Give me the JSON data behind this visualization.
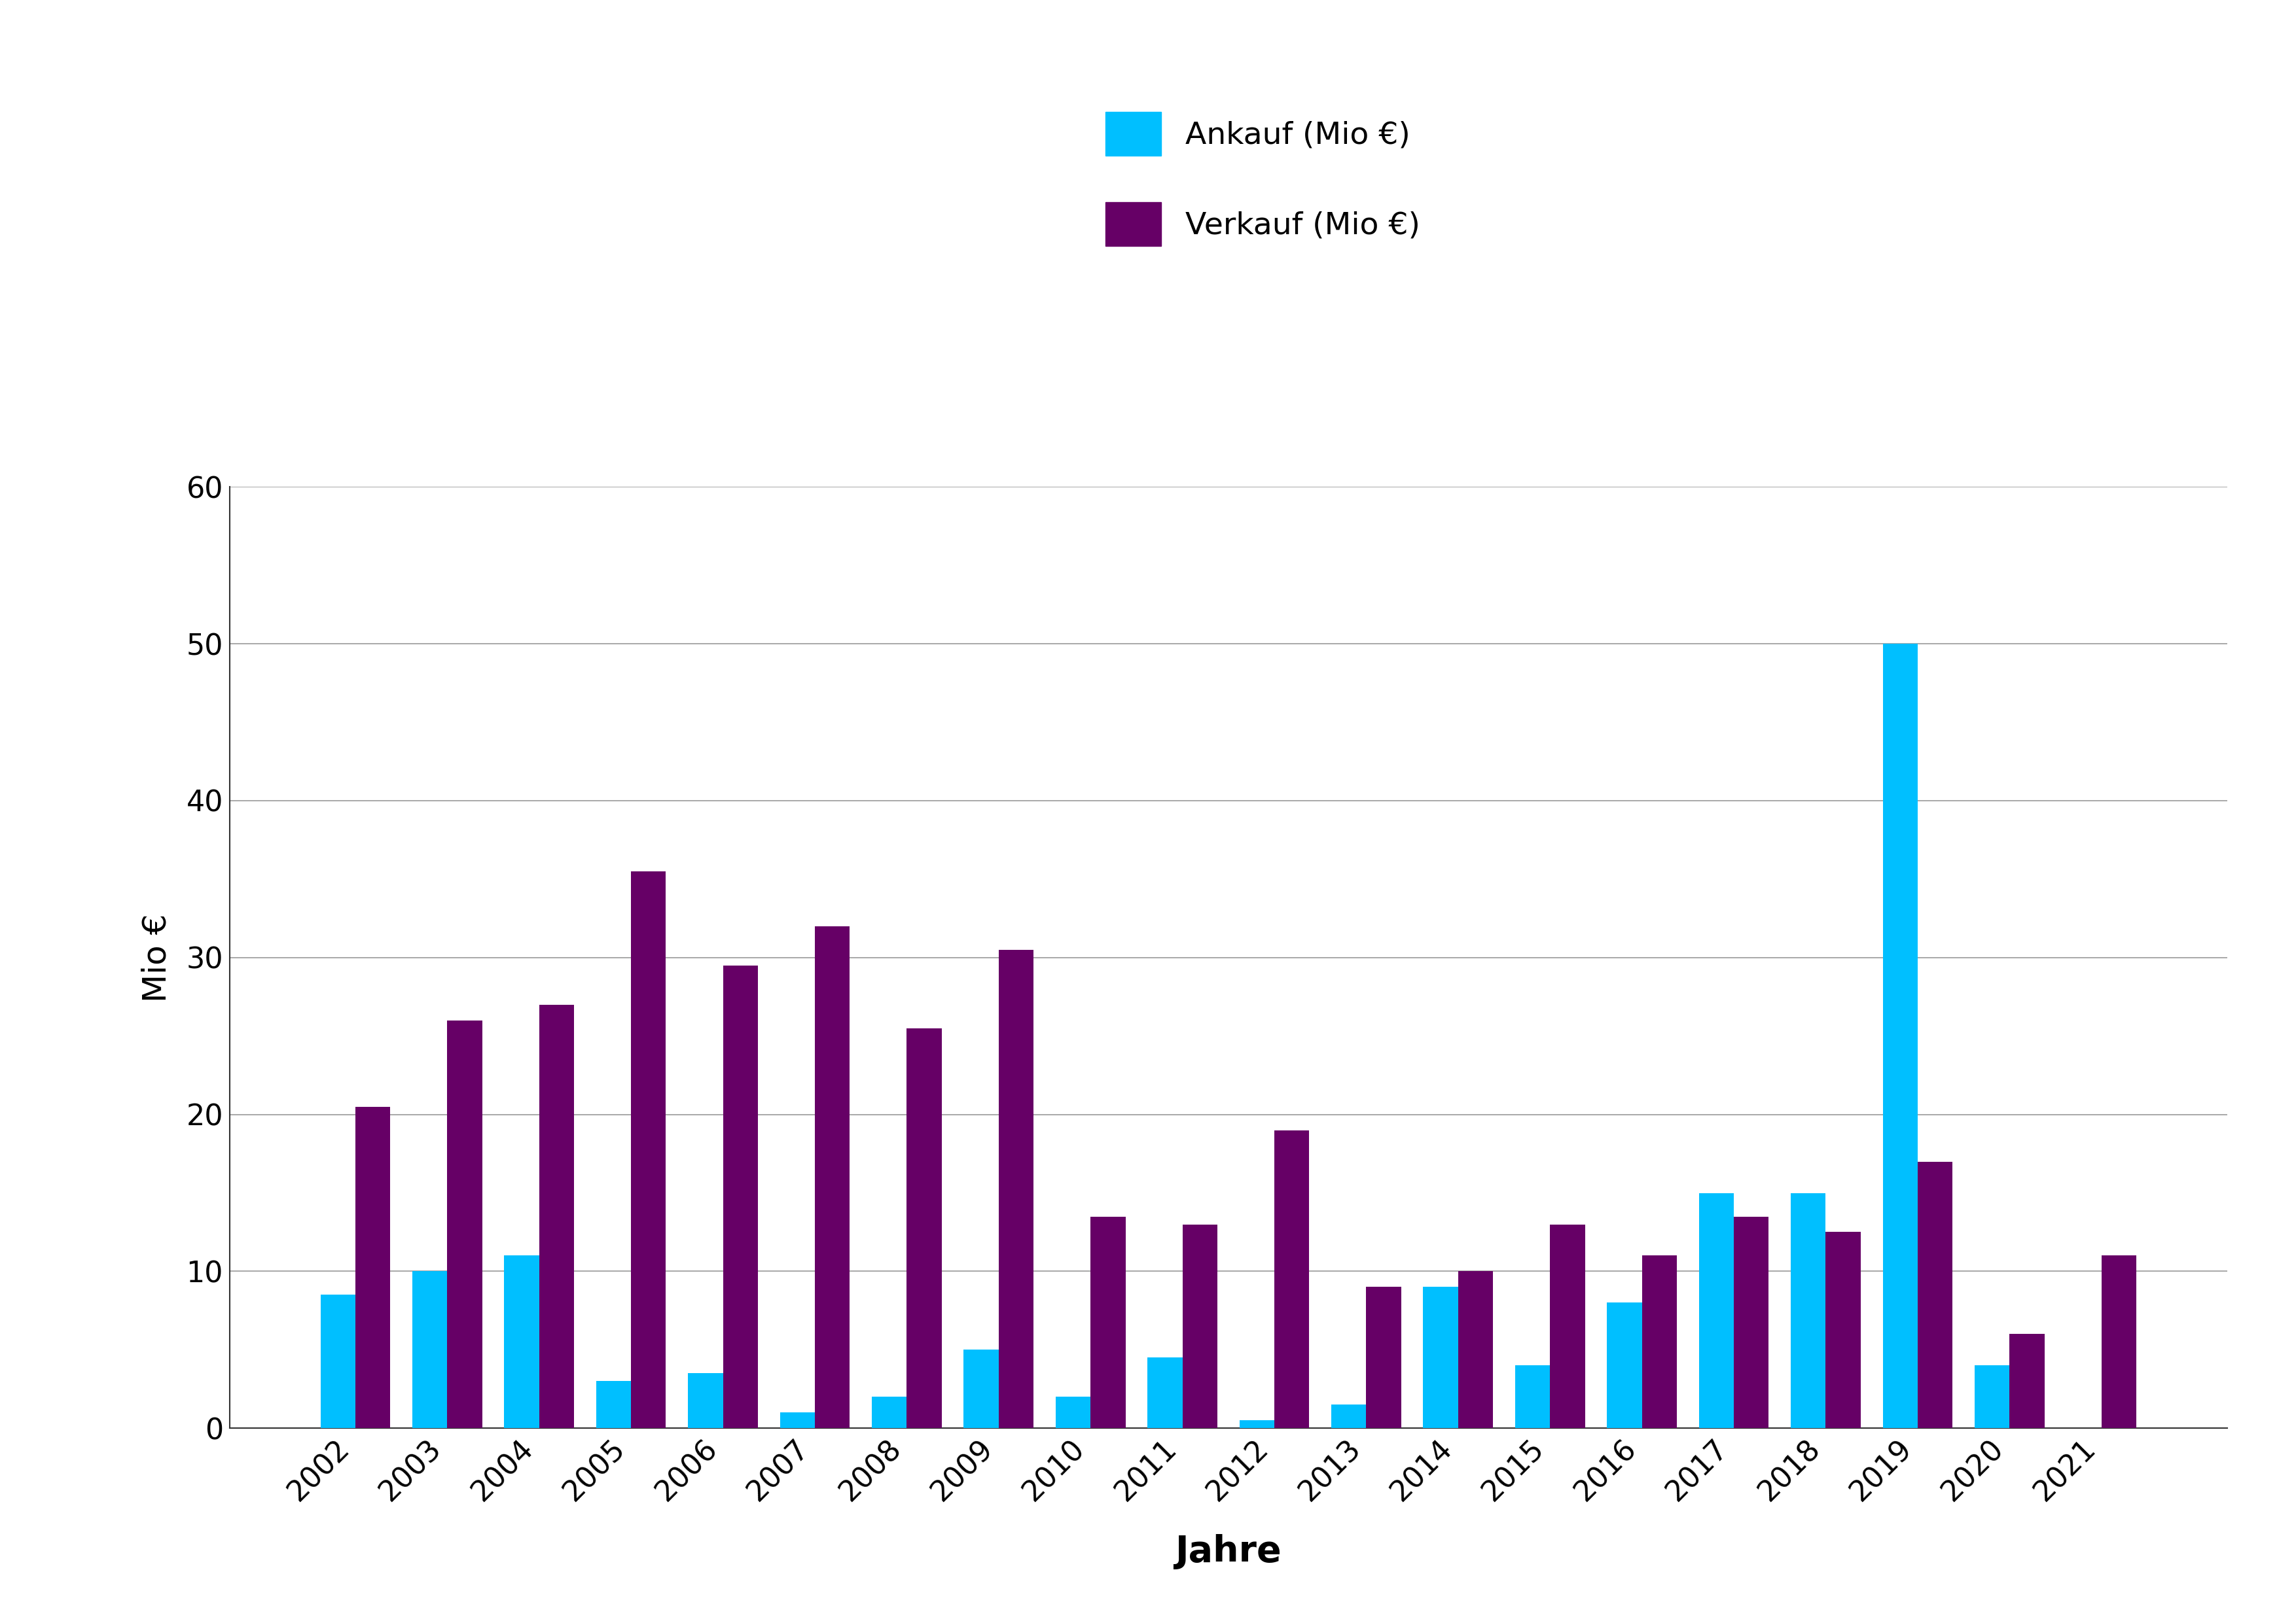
{
  "years": [
    2002,
    2003,
    2004,
    2005,
    2006,
    2007,
    2008,
    2009,
    2010,
    2011,
    2012,
    2013,
    2014,
    2015,
    2016,
    2017,
    2018,
    2019,
    2020,
    2021
  ],
  "ankauf": [
    8.5,
    10,
    11,
    3,
    3.5,
    1,
    2,
    5,
    2,
    4.5,
    0.5,
    1.5,
    9,
    4,
    8,
    15,
    15,
    50,
    4,
    0
  ],
  "verkauf": [
    20.5,
    26,
    27,
    35.5,
    29.5,
    32,
    25.5,
    30.5,
    13.5,
    13,
    19,
    9,
    10,
    13,
    11,
    13.5,
    12.5,
    17,
    6,
    11
  ],
  "ankauf_color": "#00BFFF",
  "verkauf_color": "#660066",
  "ylabel": "Mio €",
  "xlabel": "Jahre",
  "ylim": [
    0,
    60
  ],
  "yticks": [
    0,
    10,
    20,
    30,
    40,
    50,
    60
  ],
  "legend_ankauf": "Ankauf (Mio €)",
  "legend_verkauf": "Verkauf (Mio €)",
  "background_color": "#ffffff",
  "grid_color": "#999999",
  "bar_width": 0.38,
  "axis_label_fontsize": 36,
  "tick_fontsize": 32,
  "legend_fontsize": 34,
  "xlabel_fontsize": 40
}
